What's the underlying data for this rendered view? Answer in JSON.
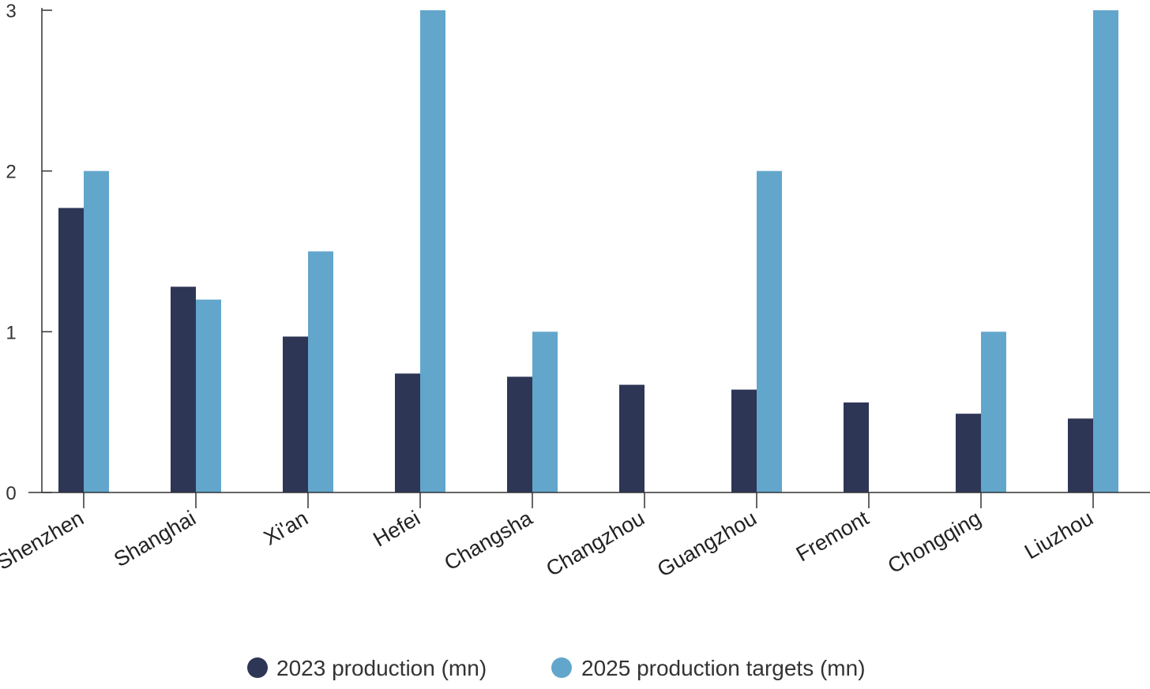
{
  "chart_data": {
    "type": "bar",
    "categories": [
      "Shenzhen",
      "Shanghai",
      "Xi'an",
      "Hefei",
      "Changsha",
      "Changzhou",
      "Guangzhou",
      "Fremont",
      "Chongqing",
      "Liuzhou"
    ],
    "series": [
      {
        "name": "2023 production (mn)",
        "values": [
          1.77,
          1.28,
          0.97,
          0.74,
          0.72,
          0.67,
          0.64,
          0.56,
          0.49,
          0.46
        ],
        "color": "#2e3656"
      },
      {
        "name": "2025 production targets (mn)",
        "values": [
          2.0,
          1.2,
          1.5,
          3.0,
          1.0,
          null,
          2.0,
          null,
          1.0,
          3.0
        ],
        "color": "#62a6cc"
      }
    ],
    "yticks": [
      0,
      1,
      2,
      3
    ],
    "ylim": [
      0,
      3
    ],
    "title": "",
    "xlabel": "",
    "ylabel": "",
    "grid": false,
    "legend_position": "bottom-center"
  },
  "colors": {
    "axis": "#333333"
  }
}
